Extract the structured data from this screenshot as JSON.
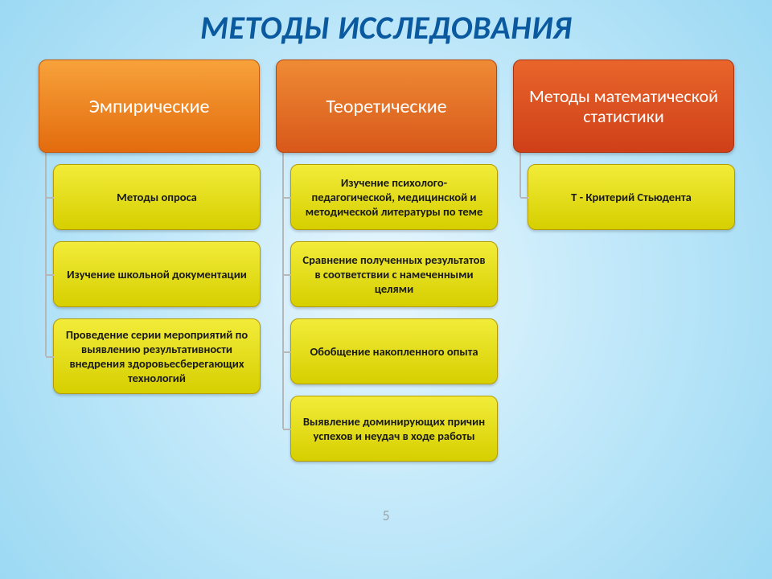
{
  "type": "hierarchy-infographic",
  "title": "МЕТОДЫ ИССЛЕДОВАНИЯ",
  "title_color": "#0b5aa0",
  "background_gradient": [
    "#e8f6fd",
    "#c3e9fa",
    "#9cd9f3"
  ],
  "slide_number": "5",
  "item_fill_gradient": [
    "#f2ec3a",
    "#d6cf00"
  ],
  "item_border": "#b39b00",
  "connector_color": "#b7b7b7",
  "columns": [
    {
      "header": "Эмпирические",
      "header_gradient": [
        "#f7a23a",
        "#e36b0e"
      ],
      "header_border": "#c45a09",
      "items": [
        "Методы опроса",
        "Изучение школьной документации",
        "Проведение серии мероприятий по выявлению результативности внедрения здоровьесберегающих технологий"
      ]
    },
    {
      "header": "Теоретические",
      "header_gradient": [
        "#ef8b35",
        "#d8581a"
      ],
      "header_border": "#b54712",
      "items": [
        "Изучение психолого-педагогической, медицинской и  методической литературы по теме",
        "Сравнение полученных результатов в соответствии  с намеченными целями",
        "Обобщение накопленного опыта",
        "Выявление доминирующих причин успехов и неудач в ходе работы"
      ]
    },
    {
      "header": "Методы математической статистики",
      "header_gradient": [
        "#e8652b",
        "#cf3f18"
      ],
      "header_border": "#a93311",
      "items": [
        "T - Критерий Стьюдента"
      ]
    }
  ]
}
